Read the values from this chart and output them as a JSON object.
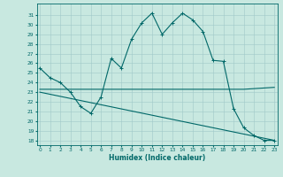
{
  "xlabel": "Humidex (Indice chaleur)",
  "ylabel": "",
  "bg_color": "#c8e8e0",
  "grid_color": "#a0c8c8",
  "line_color": "#006868",
  "x_ticks": [
    0,
    1,
    2,
    3,
    4,
    5,
    6,
    7,
    8,
    9,
    10,
    11,
    12,
    13,
    14,
    15,
    16,
    17,
    18,
    19,
    20,
    21,
    22,
    23
  ],
  "ylim": [
    17.5,
    32.2
  ],
  "xlim": [
    -0.3,
    23.3
  ],
  "y_ticks": [
    18,
    19,
    20,
    21,
    22,
    23,
    24,
    25,
    26,
    27,
    28,
    29,
    30,
    31
  ],
  "line1_x": [
    0,
    1,
    2,
    3,
    4,
    5,
    6,
    7,
    8,
    9,
    10,
    11,
    12,
    13,
    14,
    15,
    16,
    17,
    18,
    19,
    20,
    21,
    22,
    23
  ],
  "line1_y": [
    25.5,
    24.5,
    24.0,
    23.0,
    21.5,
    20.8,
    22.5,
    26.5,
    25.5,
    28.5,
    30.2,
    31.2,
    29.0,
    30.2,
    31.2,
    30.5,
    29.3,
    26.3,
    26.2,
    21.3,
    19.3,
    18.5,
    18.0,
    18.0
  ],
  "line2_x": [
    0,
    20,
    23
  ],
  "line2_y": [
    23.3,
    23.3,
    23.5
  ],
  "line3_x": [
    0,
    23
  ],
  "line3_y": [
    23.0,
    18.0
  ]
}
